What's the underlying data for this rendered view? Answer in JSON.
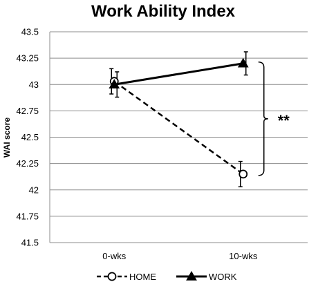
{
  "chart_data": {
    "type": "line",
    "title": "Work Ability Index",
    "xlabel": "",
    "ylabel": "WAI score",
    "categories": [
      "0-wks",
      "10-wks"
    ],
    "ylim": [
      41.5,
      43.5
    ],
    "yticks": [
      41.5,
      41.75,
      42,
      42.25,
      42.5,
      42.75,
      43,
      43.25,
      43.5
    ],
    "ytick_labels": [
      "41.5",
      "41.75",
      "42",
      "42.25",
      "42.5",
      "42.75",
      "43",
      "43.25",
      "43.5"
    ],
    "grid": true,
    "legend_position": "bottom",
    "series": [
      {
        "name": "HOME",
        "values": [
          43.03,
          42.15
        ],
        "errors": [
          0.12,
          0.12
        ],
        "marker": "open-circle",
        "line_style": "dashed",
        "color": "#000000"
      },
      {
        "name": "WORK",
        "values": [
          43.0,
          43.2
        ],
        "errors": [
          0.12,
          0.11
        ],
        "marker": "filled-triangle",
        "line_style": "solid",
        "color": "#000000"
      }
    ],
    "annotations": [
      {
        "text": "**",
        "between_series": [
          "WORK",
          "HOME"
        ],
        "category": "10-wks"
      }
    ]
  }
}
